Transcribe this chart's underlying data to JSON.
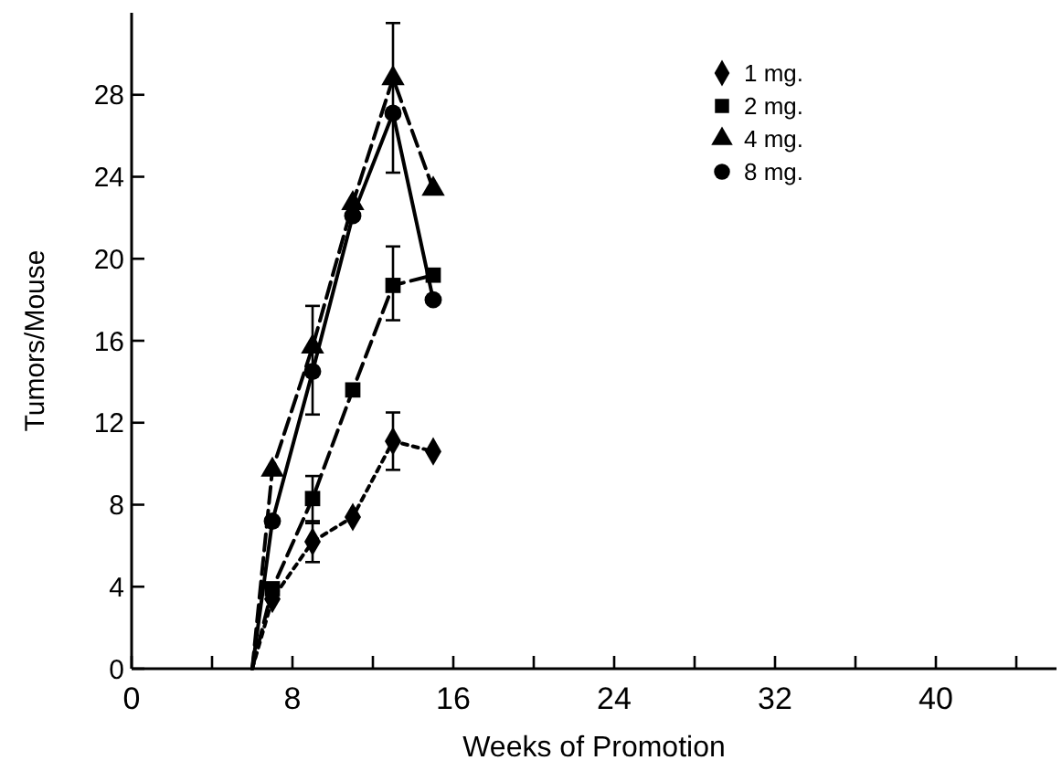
{
  "chart_data": {
    "type": "line",
    "xlabel": "Weeks of Promotion",
    "ylabel": "Tumors/Mouse",
    "xlim": [
      0,
      46
    ],
    "ylim": [
      0,
      32
    ],
    "xticks": [
      0,
      {
        "value": 4,
        "label": null
      },
      8,
      {
        "value": 12,
        "label": null
      },
      16,
      {
        "value": 20,
        "label": null
      },
      24,
      {
        "value": 28,
        "label": null
      },
      32,
      {
        "value": 36,
        "label": null
      },
      40,
      {
        "value": 44,
        "label": null
      }
    ],
    "yticks": [
      0,
      4,
      8,
      12,
      16,
      20,
      24,
      28
    ],
    "grid": false,
    "legend": "top right",
    "series": [
      {
        "name": "1 mg.",
        "color": "#000000",
        "marker": "diamond",
        "line_style": "dotted",
        "x": [
          6,
          7,
          9,
          11,
          13,
          15
        ],
        "values": [
          0,
          3.4,
          6.2,
          7.4,
          11.1,
          10.6
        ],
        "errors": [
          null,
          null,
          [
            5.2,
            7.2
          ],
          null,
          [
            9.7,
            12.5
          ],
          null
        ]
      },
      {
        "name": "2 mg.",
        "color": "#000000",
        "marker": "square",
        "line_style": "dashed",
        "x": [
          6,
          7,
          9,
          11,
          13,
          15
        ],
        "values": [
          0,
          3.9,
          8.3,
          13.6,
          18.7,
          19.2
        ],
        "errors": [
          null,
          null,
          [
            7.1,
            9.4
          ],
          null,
          [
            17,
            20.6
          ],
          null
        ]
      },
      {
        "name": "4 mg.",
        "color": "#000000",
        "marker": "triangle",
        "line_style": "dashed",
        "x": [
          6,
          7,
          9,
          11,
          13,
          15
        ],
        "values": [
          0,
          9.7,
          15.7,
          22.7,
          28.8,
          23.4
        ]
      },
      {
        "name": "8 mg.",
        "color": "#000000",
        "marker": "circle",
        "line_style": "solid",
        "x": [
          6,
          7,
          9,
          11,
          13,
          15
        ],
        "values": [
          0,
          7.2,
          14.5,
          22.1,
          27.1,
          18
        ],
        "errors": [
          null,
          null,
          [
            12.4,
            17.7
          ],
          null,
          [
            24.2,
            31.5
          ],
          null
        ]
      }
    ]
  }
}
